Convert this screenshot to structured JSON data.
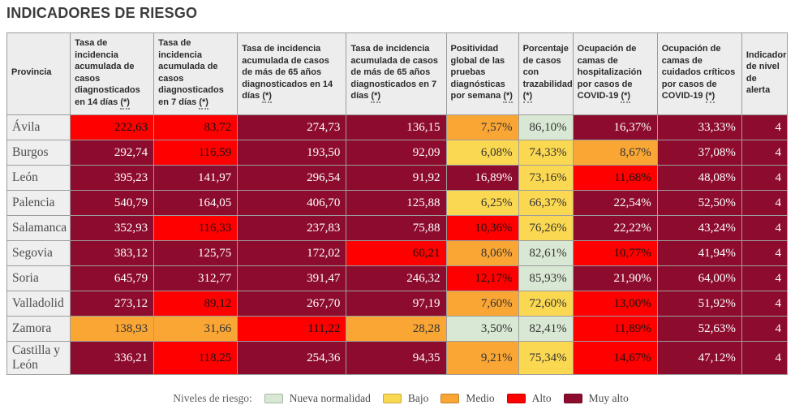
{
  "page_title": "INDICADORES DE RIESGO",
  "chart_data": {
    "type": "table",
    "title": "INDICADORES DE RIESGO",
    "province_header": "Provincia",
    "columns": [
      {
        "label": "Tasa de incidencia acumulada de casos diagnosticados en 14 días",
        "asterisk": true
      },
      {
        "label": "Tasa de incidencia acumulada de casos diagnosticados en 7 días",
        "asterisk": true
      },
      {
        "label": "Tasa de incidencia acumulada de casos de más de 65 años diagnosticados en 14 días",
        "asterisk": true
      },
      {
        "label": "Tasa de incidencia acumulada de casos de más de 65 años diagnosticados en 7 días",
        "asterisk": true
      },
      {
        "label": "Positividad global de las pruebas diagnósticas por semana",
        "asterisk": true
      },
      {
        "label": "Porcentaje de casos con trazabilidad",
        "asterisk": true
      },
      {
        "label": "Ocupación de camas de hospitalización por casos de COVID-19",
        "asterisk": true
      },
      {
        "label": "Ocupación de camas de cuidados críticos por casos de COVID-19",
        "asterisk": true
      },
      {
        "label": "Indicador de nivel de alerta",
        "asterisk": false
      }
    ],
    "rows": [
      {
        "province": "Ávila",
        "cells": [
          {
            "value": "222,63",
            "level": "alto"
          },
          {
            "value": "83,72",
            "level": "alto"
          },
          {
            "value": "274,73",
            "level": "muy_alto"
          },
          {
            "value": "136,15",
            "level": "muy_alto"
          },
          {
            "value": "7,57%",
            "level": "medio"
          },
          {
            "value": "86,10%",
            "level": "nueva_normalidad"
          },
          {
            "value": "16,37%",
            "level": "muy_alto"
          },
          {
            "value": "33,33%",
            "level": "muy_alto"
          },
          {
            "value": "4",
            "level": "muy_alto"
          }
        ]
      },
      {
        "province": "Burgos",
        "cells": [
          {
            "value": "292,74",
            "level": "muy_alto"
          },
          {
            "value": "116,59",
            "level": "alto"
          },
          {
            "value": "193,50",
            "level": "muy_alto"
          },
          {
            "value": "92,09",
            "level": "muy_alto"
          },
          {
            "value": "6,08%",
            "level": "bajo"
          },
          {
            "value": "74,33%",
            "level": "bajo"
          },
          {
            "value": "8,67%",
            "level": "medio"
          },
          {
            "value": "37,08%",
            "level": "muy_alto"
          },
          {
            "value": "4",
            "level": "muy_alto"
          }
        ]
      },
      {
        "province": "León",
        "cells": [
          {
            "value": "395,23",
            "level": "muy_alto"
          },
          {
            "value": "141,97",
            "level": "muy_alto"
          },
          {
            "value": "296,54",
            "level": "muy_alto"
          },
          {
            "value": "91,92",
            "level": "muy_alto"
          },
          {
            "value": "16,89%",
            "level": "muy_alto"
          },
          {
            "value": "73,16%",
            "level": "bajo"
          },
          {
            "value": "11,68%",
            "level": "alto"
          },
          {
            "value": "48,08%",
            "level": "muy_alto"
          },
          {
            "value": "4",
            "level": "muy_alto"
          }
        ]
      },
      {
        "province": "Palencia",
        "cells": [
          {
            "value": "540,79",
            "level": "muy_alto"
          },
          {
            "value": "164,05",
            "level": "muy_alto"
          },
          {
            "value": "406,70",
            "level": "muy_alto"
          },
          {
            "value": "125,88",
            "level": "muy_alto"
          },
          {
            "value": "6,25%",
            "level": "bajo"
          },
          {
            "value": "66,37%",
            "level": "bajo"
          },
          {
            "value": "22,54%",
            "level": "muy_alto"
          },
          {
            "value": "52,50%",
            "level": "muy_alto"
          },
          {
            "value": "4",
            "level": "muy_alto"
          }
        ]
      },
      {
        "province": "Salamanca",
        "cells": [
          {
            "value": "352,93",
            "level": "muy_alto"
          },
          {
            "value": "116,33",
            "level": "alto"
          },
          {
            "value": "237,83",
            "level": "muy_alto"
          },
          {
            "value": "75,88",
            "level": "muy_alto"
          },
          {
            "value": "10,36%",
            "level": "alto"
          },
          {
            "value": "76,26%",
            "level": "bajo"
          },
          {
            "value": "22,22%",
            "level": "muy_alto"
          },
          {
            "value": "43,24%",
            "level": "muy_alto"
          },
          {
            "value": "4",
            "level": "muy_alto"
          }
        ]
      },
      {
        "province": "Segovia",
        "cells": [
          {
            "value": "383,12",
            "level": "muy_alto"
          },
          {
            "value": "125,75",
            "level": "muy_alto"
          },
          {
            "value": "172,02",
            "level": "muy_alto"
          },
          {
            "value": "60,21",
            "level": "alto"
          },
          {
            "value": "8,06%",
            "level": "medio"
          },
          {
            "value": "82,61%",
            "level": "nueva_normalidad"
          },
          {
            "value": "10,77%",
            "level": "alto"
          },
          {
            "value": "41,94%",
            "level": "muy_alto"
          },
          {
            "value": "4",
            "level": "muy_alto"
          }
        ]
      },
      {
        "province": "Soria",
        "cells": [
          {
            "value": "645,79",
            "level": "muy_alto"
          },
          {
            "value": "312,77",
            "level": "muy_alto"
          },
          {
            "value": "391,47",
            "level": "muy_alto"
          },
          {
            "value": "246,32",
            "level": "muy_alto"
          },
          {
            "value": "12,17%",
            "level": "alto"
          },
          {
            "value": "85,93%",
            "level": "nueva_normalidad"
          },
          {
            "value": "21,90%",
            "level": "muy_alto"
          },
          {
            "value": "64,00%",
            "level": "muy_alto"
          },
          {
            "value": "4",
            "level": "muy_alto"
          }
        ]
      },
      {
        "province": "Valladolid",
        "cells": [
          {
            "value": "273,12",
            "level": "muy_alto"
          },
          {
            "value": "89,12",
            "level": "alto"
          },
          {
            "value": "267,70",
            "level": "muy_alto"
          },
          {
            "value": "97,19",
            "level": "muy_alto"
          },
          {
            "value": "7,60%",
            "level": "medio"
          },
          {
            "value": "72,60%",
            "level": "bajo"
          },
          {
            "value": "13,00%",
            "level": "alto"
          },
          {
            "value": "51,92%",
            "level": "muy_alto"
          },
          {
            "value": "4",
            "level": "muy_alto"
          }
        ]
      },
      {
        "province": "Zamora",
        "cells": [
          {
            "value": "138,93",
            "level": "medio"
          },
          {
            "value": "31,66",
            "level": "medio"
          },
          {
            "value": "111,22",
            "level": "alto"
          },
          {
            "value": "28,28",
            "level": "medio"
          },
          {
            "value": "3,50%",
            "level": "nueva_normalidad"
          },
          {
            "value": "82,41%",
            "level": "nueva_normalidad"
          },
          {
            "value": "11,89%",
            "level": "alto"
          },
          {
            "value": "52,63%",
            "level": "muy_alto"
          },
          {
            "value": "4",
            "level": "muy_alto"
          }
        ]
      },
      {
        "province": "Castilla y León",
        "cells": [
          {
            "value": "336,21",
            "level": "muy_alto"
          },
          {
            "value": "118,25",
            "level": "alto"
          },
          {
            "value": "254,36",
            "level": "muy_alto"
          },
          {
            "value": "94,35",
            "level": "muy_alto"
          },
          {
            "value": "9,21%",
            "level": "medio"
          },
          {
            "value": "75,34%",
            "level": "bajo"
          },
          {
            "value": "14,67%",
            "level": "alto"
          },
          {
            "value": "47,12%",
            "level": "muy_alto"
          },
          {
            "value": "4",
            "level": "muy_alto"
          }
        ]
      }
    ],
    "risk_levels": {
      "nueva_normalidad": {
        "label": "Nueva normalidad",
        "color": "#d9e8d4",
        "text_color": "#333333"
      },
      "bajo": {
        "label": "Bajo",
        "color": "#fbd851",
        "text_color": "#333333"
      },
      "medio": {
        "label": "Medio",
        "color": "#faa634",
        "text_color": "#333333"
      },
      "alto": {
        "label": "Alto",
        "color": "#fe0000",
        "text_color": "#141414"
      },
      "muy_alto": {
        "label": "Muy alto",
        "color": "#8d0c2e",
        "text_color": "#ffffff"
      }
    },
    "legend": {
      "label": "Niveles de riesgo:",
      "order": [
        "nueva_normalidad",
        "bajo",
        "medio",
        "alto",
        "muy_alto"
      ]
    }
  }
}
